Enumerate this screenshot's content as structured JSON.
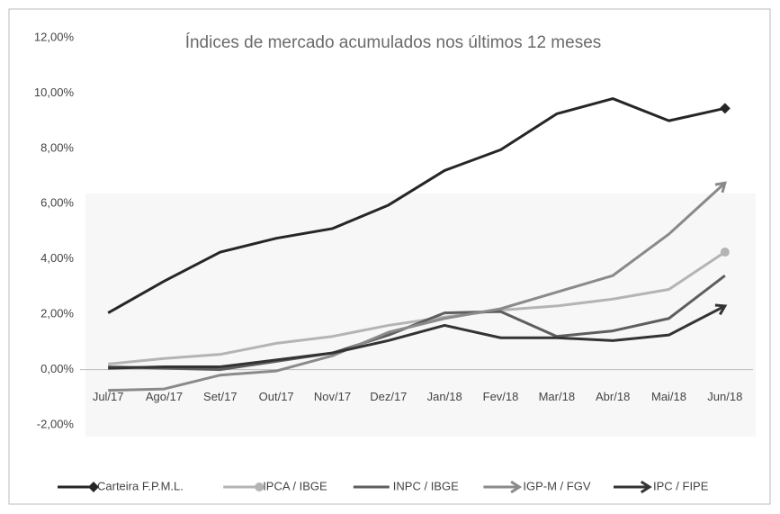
{
  "chart_data": {
    "type": "line",
    "title": "Índices de mercado acumulados nos últimos 12 meses",
    "categories": [
      "Jul/17",
      "Ago/17",
      "Set/17",
      "Out/17",
      "Nov/17",
      "Dez/17",
      "Jan/18",
      "Fev/18",
      "Mar/18",
      "Abr/18",
      "Mai/18",
      "Jun/18"
    ],
    "ylim": [
      -2,
      12
    ],
    "yticks": [
      {
        "value": -2,
        "label": "-2,00%"
      },
      {
        "value": 0,
        "label": "0,00%"
      },
      {
        "value": 2,
        "label": "2,00%"
      },
      {
        "value": 4,
        "label": "4,00%"
      },
      {
        "value": 6,
        "label": "6,00%"
      },
      {
        "value": 8,
        "label": "8,00%"
      },
      {
        "value": 10,
        "label": "10,00%"
      },
      {
        "value": 12,
        "label": "12,00%"
      }
    ],
    "grid": false,
    "legend": "bottom",
    "series": [
      {
        "name": "Carteira F.P.M.L.",
        "color": "#262626",
        "marker": "diamond",
        "values": [
          2.05,
          3.2,
          4.25,
          4.75,
          5.1,
          5.95,
          7.2,
          7.95,
          9.25,
          9.8,
          9.0,
          9.45
        ]
      },
      {
        "name": "IPCA / IBGE",
        "color": "#b4b4b4",
        "marker": "circle",
        "values": [
          0.2,
          0.4,
          0.55,
          0.95,
          1.2,
          1.6,
          1.9,
          2.15,
          2.3,
          2.55,
          2.9,
          4.25
        ]
      },
      {
        "name": "INPC / IBGE",
        "color": "#5e5e5e",
        "marker": "none",
        "values": [
          0.1,
          0.05,
          0.0,
          0.3,
          0.6,
          1.25,
          2.05,
          2.1,
          1.2,
          1.4,
          1.85,
          3.4
        ]
      },
      {
        "name": "IGP-M / FGV",
        "color": "#8a8a8a",
        "marker": "arrow",
        "values": [
          -0.75,
          -0.7,
          -0.2,
          -0.05,
          0.5,
          1.35,
          1.85,
          2.2,
          2.8,
          3.4,
          4.9,
          6.75
        ]
      },
      {
        "name": "IPC / FIPE",
        "color": "#333333",
        "marker": "arrow",
        "values": [
          0.05,
          0.1,
          0.1,
          0.35,
          0.6,
          1.05,
          1.6,
          1.15,
          1.15,
          1.05,
          1.25,
          2.3
        ]
      }
    ]
  }
}
